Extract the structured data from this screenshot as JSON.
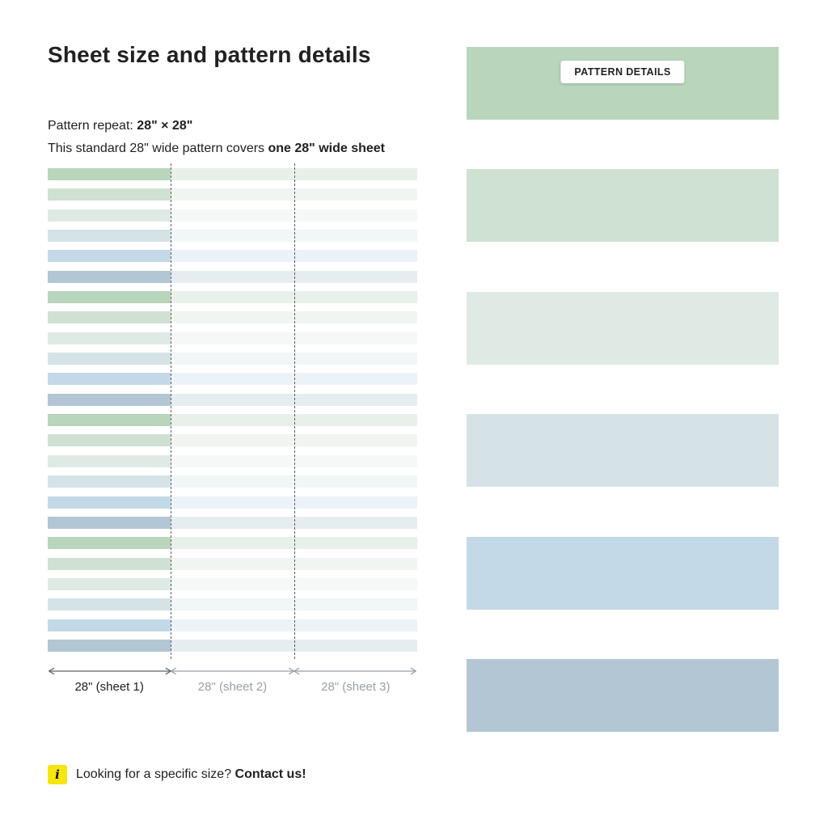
{
  "header": {
    "title": "Sheet size and pattern details",
    "repeat_label": "Pattern repeat: ",
    "repeat_value": "28\" × 28\"",
    "coverage_text": "This standard 28\" wide pattern covers ",
    "coverage_bold": "one 28\" wide sheet"
  },
  "pattern_diagram": {
    "stripe_count": 24,
    "stripe_colors": [
      "#b9d5bc",
      "#cfe1d2",
      "#dfeae5",
      "#d5e3e7",
      "#c3d9e8",
      "#b2c6d4"
    ],
    "faded_opacity": 0.32,
    "sheets": [
      {
        "label": "28\" (sheet 1)"
      },
      {
        "label": "28\" (sheet 2)"
      },
      {
        "label": "28\" (sheet 3)"
      }
    ]
  },
  "swatch_panel": {
    "badge_label": "PATTERN DETAILS",
    "swatches": [
      "#b9d5bc",
      "#cfe1d2",
      "#dfeae5",
      "#d5e3e7",
      "#c3d9e8",
      "#b2c6d4"
    ]
  },
  "footer": {
    "info_glyph": "i",
    "text": "Looking for a specific size? ",
    "cta": "Contact us!"
  },
  "colors": {
    "accent_yellow": "#f6e50f",
    "text_dark": "#212121",
    "text_gray": "#9aa0a6"
  }
}
